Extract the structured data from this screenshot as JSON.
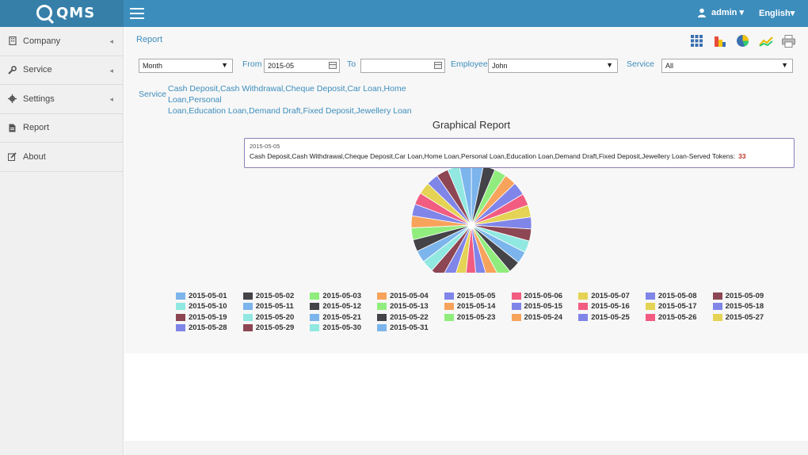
{
  "app": {
    "logo_text": "QMS"
  },
  "header": {
    "user_label": "admin ▾",
    "language_label": "English▾"
  },
  "sidebar": {
    "items": [
      {
        "label": "Company",
        "icon": "building-icon"
      },
      {
        "label": "Service",
        "icon": "wrench-icon"
      },
      {
        "label": "Settings",
        "icon": "gear-icon"
      },
      {
        "label": "Report",
        "icon": "file-icon"
      },
      {
        "label": "About",
        "icon": "edit-icon"
      }
    ]
  },
  "breadcrumb": "Report",
  "toolbar": {
    "icons": [
      "grid-icon",
      "bar-chart-icon",
      "pie-chart-icon",
      "line-chart-icon",
      "print-icon"
    ]
  },
  "filters": {
    "period_value": "Month",
    "from_label": "From",
    "from_value": "2015-05",
    "to_label": "To",
    "to_value": "",
    "employee_label": "Employee",
    "employee_value": "John",
    "service_label": "Service",
    "service_value": "All"
  },
  "service_list": {
    "label": "Service",
    "line1": "Cash Deposit,Cash Withdrawal,Cheque Deposit,Car Loan,Home Loan,Personal",
    "line2": "Loan,Education Loan,Demand Draft,Fixed Deposit,Jewellery Loan"
  },
  "tooltip": {
    "date": "2015-05-05",
    "text": "Cash Deposit,Cash Withdrawal,Cheque Deposit,Car Loan,Home Loan,Personal Loan,Education Loan,Demand Draft,Fixed Deposit,Jewellery Loan-Served Tokens:",
    "value": "33"
  },
  "chart_data": {
    "type": "pie",
    "title": "Graphical Report",
    "legend_position": "bottom",
    "categories": [
      "2015-05-01",
      "2015-05-02",
      "2015-05-03",
      "2015-05-04",
      "2015-05-05",
      "2015-05-06",
      "2015-05-07",
      "2015-05-08",
      "2015-05-09",
      "2015-05-10",
      "2015-05-11",
      "2015-05-12",
      "2015-05-13",
      "2015-05-14",
      "2015-05-15",
      "2015-05-16",
      "2015-05-17",
      "2015-05-18",
      "2015-05-19",
      "2015-05-20",
      "2015-05-21",
      "2015-05-22",
      "2015-05-23",
      "2015-05-24",
      "2015-05-25",
      "2015-05-26",
      "2015-05-27",
      "2015-05-28",
      "2015-05-29",
      "2015-05-30",
      "2015-05-31"
    ],
    "values": [
      30,
      30,
      30,
      30,
      33,
      30,
      30,
      30,
      30,
      30,
      30,
      30,
      30,
      30,
      30,
      30,
      30,
      30,
      30,
      30,
      30,
      30,
      30,
      30,
      30,
      30,
      30,
      30,
      30,
      30,
      30
    ],
    "colors": [
      "#7cb5ec",
      "#434348",
      "#90ed7d",
      "#f7a35c",
      "#8085e9",
      "#f15c80",
      "#e4d354",
      "#8085e8",
      "#8d4653",
      "#91e8e1",
      "#7cb5ec",
      "#434348",
      "#90ed7d",
      "#f7a35c",
      "#8085e9",
      "#f15c80",
      "#e4d354",
      "#8085e8",
      "#8d4653",
      "#91e8e1",
      "#7cb5ec",
      "#434348",
      "#90ed7d",
      "#f7a35c",
      "#8085e9",
      "#f15c80",
      "#e4d354",
      "#8085e8",
      "#8d4653",
      "#91e8e1",
      "#7cb5ec"
    ]
  }
}
